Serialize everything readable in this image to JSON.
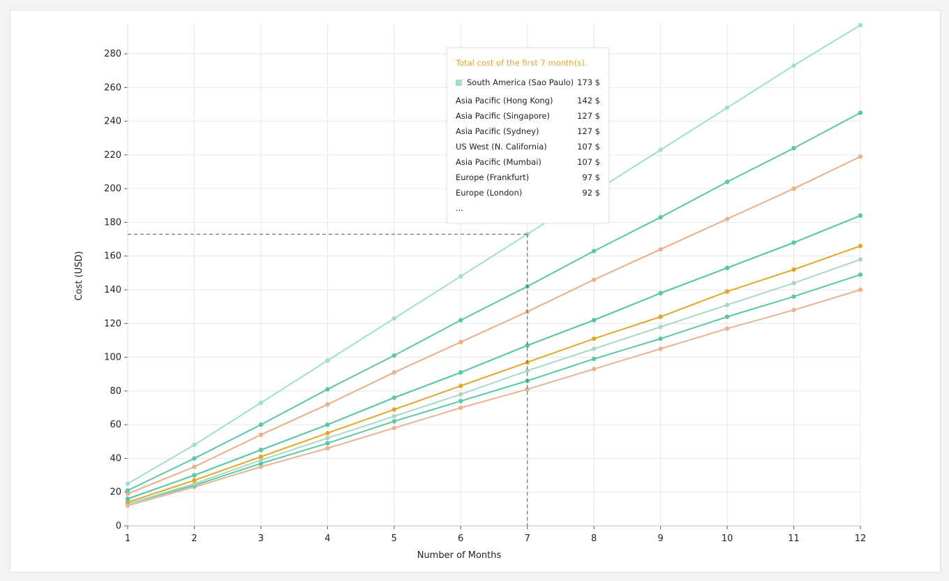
{
  "chart_data": {
    "type": "line",
    "xlabel": "Number of Months",
    "ylabel": "Cost (USD)",
    "x": [
      1,
      2,
      3,
      4,
      5,
      6,
      7,
      8,
      9,
      10,
      11,
      12
    ],
    "ylim": [
      0,
      298
    ],
    "yticks": [
      0,
      20,
      40,
      60,
      80,
      100,
      120,
      140,
      160,
      180,
      200,
      220,
      240,
      260,
      280
    ],
    "grid": true,
    "series": [
      {
        "name": "South America (Sao Paulo)",
        "color": "#9fe0c9",
        "values": [
          25,
          48,
          73,
          98,
          123,
          148,
          173,
          198,
          223,
          248,
          273,
          297
        ]
      },
      {
        "name": "Asia Pacific (Hong Kong)",
        "color": "#5cc6a7",
        "values": [
          21,
          40,
          60,
          81,
          101,
          122,
          142,
          163,
          183,
          204,
          224,
          245
        ]
      },
      {
        "name": "Asia Pacific (Singapore)",
        "color": "#e8b48f",
        "values": [
          19,
          35,
          54,
          72,
          91,
          109,
          127,
          146,
          164,
          182,
          200,
          219
        ]
      },
      {
        "name": "Asia Pacific (Sydney)",
        "color": "#e8b48f",
        "values": [
          19,
          35,
          54,
          72,
          91,
          109,
          127,
          146,
          164,
          182,
          200,
          219
        ]
      },
      {
        "name": "US West (N. California)",
        "color": "#5cc6a7",
        "values": [
          16,
          30,
          45,
          60,
          76,
          91,
          107,
          122,
          138,
          153,
          168,
          184
        ]
      },
      {
        "name": "Asia Pacific (Mumbai)",
        "color": "#5cc6a7",
        "values": [
          16,
          30,
          45,
          60,
          76,
          91,
          107,
          122,
          138,
          153,
          168,
          184
        ]
      },
      {
        "name": "Europe (Frankfurt)",
        "color": "#e0a72c",
        "values": [
          14,
          27,
          41,
          55,
          69,
          83,
          97,
          111,
          124,
          139,
          152,
          166
        ]
      },
      {
        "name": "Europe (London)",
        "color": "#a8d8c8",
        "values": [
          13,
          25,
          39,
          52,
          65,
          78,
          92,
          105,
          118,
          131,
          144,
          158
        ]
      },
      {
        "color": "#5cc6a7",
        "values": [
          13,
          24,
          37,
          49,
          62,
          74,
          86,
          99,
          111,
          124,
          136,
          149
        ]
      },
      {
        "color": "#e8b48f",
        "values": [
          12,
          23,
          35,
          46,
          58,
          70,
          81,
          93,
          105,
          117,
          128,
          140
        ]
      }
    ],
    "hover": {
      "x": 7,
      "y": 173
    }
  },
  "tooltip": {
    "title": "Total cost of the first 7 month(s).",
    "rows": [
      {
        "label": "South America (Sao Paulo)",
        "value": "173 $"
      },
      {
        "label": "Asia Pacific (Hong Kong)",
        "value": "142 $"
      },
      {
        "label": "Asia Pacific (Singapore)",
        "value": "127 $"
      },
      {
        "label": "Asia Pacific (Sydney)",
        "value": "127 $"
      },
      {
        "label": "US West (N. California)",
        "value": "107 $"
      },
      {
        "label": "Asia Pacific (Mumbai)",
        "value": "107 $"
      },
      {
        "label": "Europe (Frankfurt)",
        "value": "97 $"
      },
      {
        "label": "Europe (London)",
        "value": "92 $"
      }
    ],
    "more": "..."
  }
}
